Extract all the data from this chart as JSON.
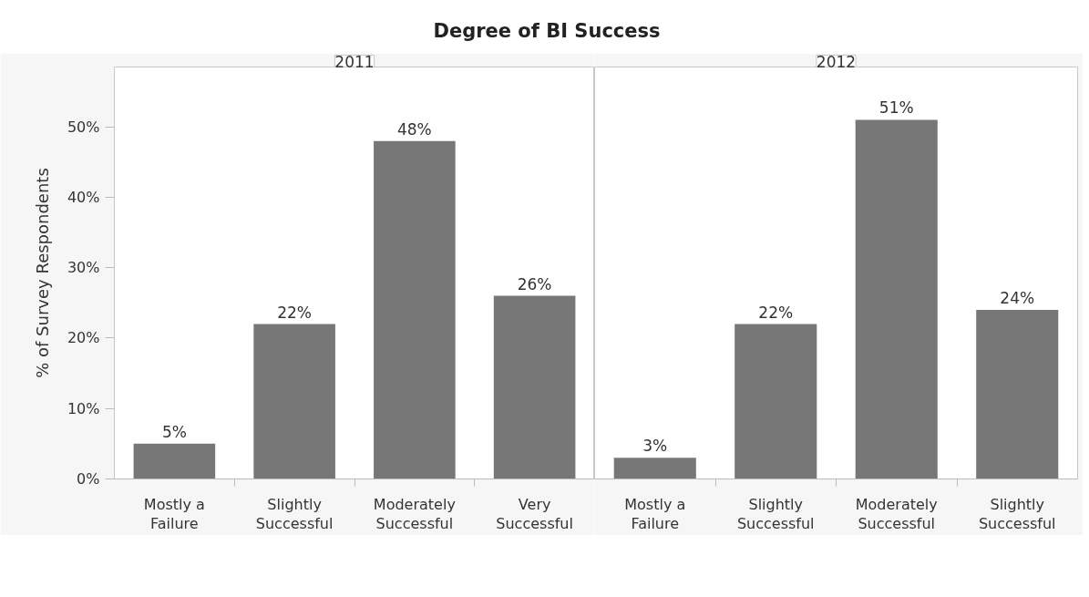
{
  "chart_data": [
    {
      "type": "bar",
      "title": "Degree of BI Success",
      "subtitle": "2011",
      "ylabel": "% of Survey Respondents",
      "categories": [
        "Mostly a Failure",
        "Slightly Successful",
        "Moderately Successful",
        "Very Successful"
      ],
      "values": [
        5,
        22,
        48,
        26
      ],
      "value_labels": [
        "5%",
        "22%",
        "48%",
        "26%"
      ],
      "color": "#777777",
      "ylim": [
        0,
        58.5
      ],
      "yticks": [
        {
          "value": 0,
          "label": "0%"
        },
        {
          "value": 10,
          "label": "10%"
        },
        {
          "value": 20,
          "label": "20%"
        },
        {
          "value": 30,
          "label": "30%"
        },
        {
          "value": 40,
          "label": "40%"
        },
        {
          "value": 50,
          "label": "50%"
        }
      ]
    },
    {
      "type": "bar",
      "subtitle": "2012",
      "categories": [
        "Mostly a Failure",
        "Slightly Successful",
        "Moderately Successful",
        "Slightly Successful"
      ],
      "values": [
        3,
        22,
        51,
        24
      ],
      "value_labels": [
        "3%",
        "22%",
        "51%",
        "24%"
      ],
      "color": "#777777",
      "ylim": [
        0,
        58.5
      ],
      "tick_labels": "x"
    }
  ]
}
